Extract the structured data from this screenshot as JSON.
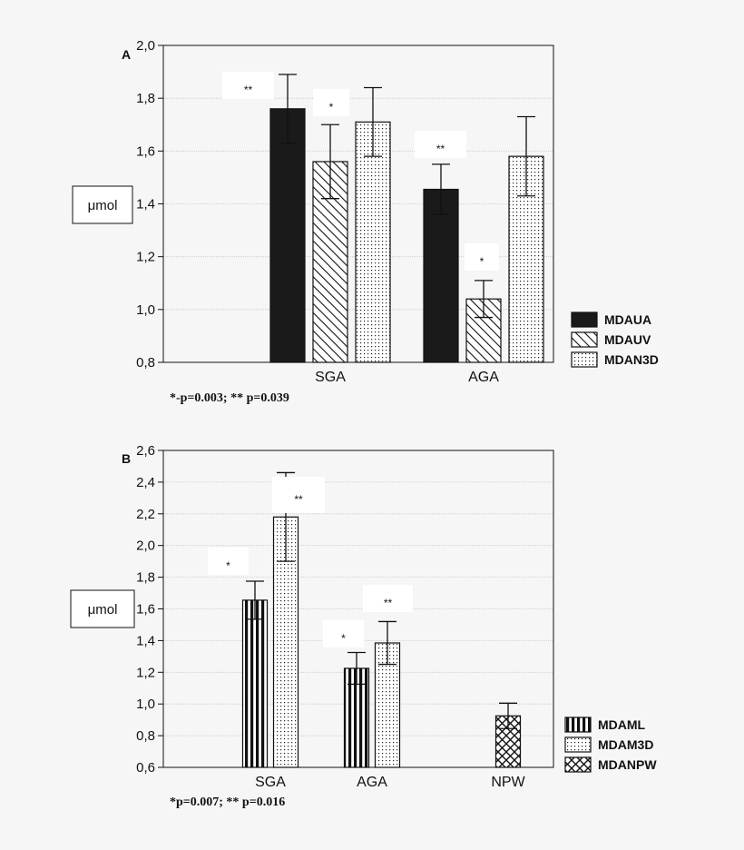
{
  "chart_data": [
    {
      "type": "bar",
      "panel_label": "A",
      "ylabel": "μmol",
      "ylim": [
        0.8,
        2.0
      ],
      "y_ticks": [
        "0,8",
        "1,0",
        "1,2",
        "1,4",
        "1,6",
        "1,8",
        "2,0"
      ],
      "categories": [
        "SGA",
        "AGA"
      ],
      "grid": true,
      "legend_position": "right",
      "series": [
        {
          "name": "MDAUA",
          "pattern": "solid",
          "values": [
            1.76,
            1.455
          ],
          "errors": [
            0.13,
            0.095
          ],
          "significance": [
            "**",
            "**"
          ]
        },
        {
          "name": "MDAUV",
          "pattern": "hatch",
          "values": [
            1.56,
            1.04
          ],
          "errors": [
            0.14,
            0.07
          ],
          "significance": [
            "*",
            "*"
          ]
        },
        {
          "name": "MDAN3D",
          "pattern": "dots",
          "values": [
            1.71,
            1.58
          ],
          "errors": [
            0.13,
            0.15
          ],
          "significance": [
            "",
            ""
          ]
        }
      ],
      "footnote": "*-p=0.003;  ** p=0.039"
    },
    {
      "type": "bar",
      "panel_label": "B",
      "ylabel": "μmol",
      "ylim": [
        0.6,
        2.6
      ],
      "y_ticks": [
        "0,6",
        "0,8",
        "1,0",
        "1,2",
        "1,4",
        "1,6",
        "1,8",
        "2,0",
        "2,2",
        "2,4",
        "2,6"
      ],
      "categories": [
        "SGA",
        "AGA",
        "NPW"
      ],
      "grid": true,
      "legend_position": "right",
      "series": [
        {
          "name": "MDAML",
          "pattern": "vstripes",
          "values": [
            1.655,
            1.225,
            null
          ],
          "errors": [
            0.12,
            0.1,
            null
          ],
          "significance": [
            "*",
            "*",
            ""
          ]
        },
        {
          "name": "MDAM3D",
          "pattern": "dots",
          "values": [
            2.18,
            1.385,
            null
          ],
          "errors": [
            0.28,
            0.135,
            null
          ],
          "significance": [
            "**",
            "**",
            ""
          ]
        },
        {
          "name": "MDANPW",
          "pattern": "crosshatch",
          "values": [
            null,
            null,
            0.925
          ],
          "errors": [
            null,
            null,
            0.08
          ],
          "significance": [
            "",
            "",
            ""
          ]
        }
      ],
      "footnote": "*p=0.007;  ** p=0.016"
    }
  ],
  "colors": {
    "bar_dark": "#1a1a1a",
    "grid": "#c8c8c8",
    "background": "#f6f6f6"
  }
}
